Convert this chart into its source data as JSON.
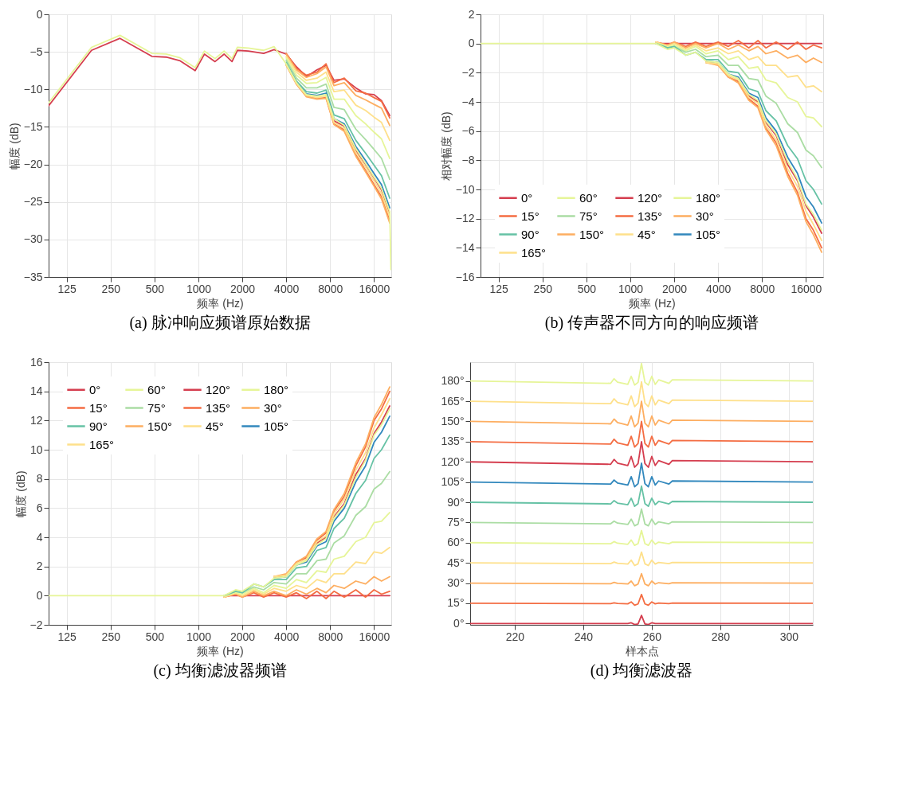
{
  "chart_data": [
    {
      "type": "line",
      "title": "(a) 脉冲响应频谱原始数据",
      "xlabel": "频率 (Hz)",
      "ylabel": "幅度 (dB)",
      "log": "x",
      "grid": true,
      "xlim": [
        94,
        21000
      ],
      "ylim": [
        -35,
        0
      ],
      "xticks": [
        125,
        250,
        500,
        1000,
        2000,
        4000,
        8000,
        16000
      ],
      "yticks": [
        -35,
        -30,
        -25,
        -20,
        -15,
        -10,
        -5,
        0
      ],
      "x": [
        94,
        185,
        290,
        480,
        600,
        750,
        950,
        1100,
        1300,
        1500,
        1700,
        1850,
        2200,
        2800,
        3300,
        4000,
        4700,
        5500,
        6500,
        7500,
        8500,
        10000,
        12000,
        14000,
        16000,
        18000,
        20500,
        20900
      ],
      "series": [
        {
          "color": "#d53e4f",
          "values": [
            -12.2,
            -4.8,
            -3.2,
            -5.6,
            -5.7,
            -6.2,
            -7.5,
            -5.3,
            -6.3,
            -5.3,
            -6.3,
            -4.8,
            -4.9,
            -5.2,
            -4.7,
            -5.3,
            -7,
            -8.3,
            -7.4,
            -6.8,
            -8.8,
            -8.6,
            -9.8,
            -10.6,
            -10.7,
            -11.5,
            -13.5,
            null
          ]
        },
        {
          "color": "#f46d43",
          "values": [
            null,
            null,
            null,
            null,
            null,
            null,
            null,
            null,
            null,
            null,
            null,
            null,
            null,
            null,
            null,
            -5.2,
            -7.2,
            -8.1,
            -7.7,
            -6.6,
            -9.1,
            -8.5,
            -10.2,
            -10.5,
            -11.1,
            -11.6,
            -13.8,
            null
          ]
        },
        {
          "color": "#fdae61",
          "values": [
            null,
            null,
            null,
            null,
            null,
            null,
            null,
            null,
            null,
            null,
            null,
            null,
            null,
            null,
            null,
            -5.3,
            -7.4,
            -8.4,
            -7.9,
            -7.0,
            -9.5,
            -9.1,
            -10.8,
            -11.4,
            -12.0,
            -12.5,
            -14.8,
            null
          ]
        },
        {
          "color": "#fee08b",
          "values": [
            null,
            null,
            null,
            null,
            null,
            null,
            null,
            null,
            null,
            null,
            null,
            null,
            null,
            null,
            null,
            -5.6,
            -7.7,
            -8.8,
            -8.5,
            -7.7,
            -10.3,
            -10.1,
            -12.1,
            -12.8,
            -13.7,
            -14.4,
            -16.8,
            null
          ]
        },
        {
          "color": "#e6f598",
          "values": [
            null,
            null,
            null,
            null,
            null,
            null,
            null,
            null,
            null,
            null,
            null,
            null,
            null,
            null,
            null,
            -5.8,
            -8.1,
            -9.2,
            -9.1,
            -8.4,
            -11.3,
            -11.3,
            -13.5,
            -14.6,
            -15.7,
            -16.6,
            -19.2,
            null
          ]
        },
        {
          "color": "#abdda4",
          "values": [
            null,
            null,
            null,
            null,
            null,
            null,
            null,
            null,
            null,
            null,
            null,
            null,
            null,
            null,
            null,
            -6.1,
            -8.5,
            -9.8,
            -9.8,
            -9.3,
            -12.4,
            -12.7,
            -15.3,
            -16.7,
            -18.0,
            -19.2,
            -22.0,
            null
          ]
        },
        {
          "color": "#66c2a5",
          "values": [
            null,
            null,
            null,
            null,
            null,
            null,
            null,
            null,
            null,
            null,
            null,
            null,
            null,
            null,
            null,
            -6.4,
            -8.9,
            -10.3,
            -10.5,
            -10.1,
            -13.4,
            -13.9,
            -16.8,
            -18.5,
            -20.1,
            -21.5,
            -24.5,
            null
          ]
        },
        {
          "color": "#3288bd",
          "values": [
            null,
            null,
            null,
            null,
            null,
            null,
            null,
            null,
            null,
            null,
            null,
            null,
            null,
            null,
            null,
            -6.6,
            -9.1,
            -10.6,
            -10.8,
            -10.5,
            -13.9,
            -14.6,
            -17.6,
            -19.5,
            -21.2,
            -22.7,
            -25.8,
            null
          ]
        },
        {
          "color": "#d53e4f",
          "values": [
            null,
            null,
            null,
            null,
            null,
            null,
            null,
            null,
            null,
            null,
            null,
            null,
            null,
            null,
            null,
            null,
            null,
            null,
            null,
            -10.8,
            -14.2,
            -14.9,
            -18.1,
            -20.0,
            -21.8,
            -23.4,
            -26.5,
            null
          ]
        },
        {
          "color": "#f46d43",
          "values": [
            null,
            null,
            null,
            null,
            null,
            null,
            null,
            null,
            null,
            null,
            null,
            null,
            null,
            null,
            null,
            -6.7,
            -9.3,
            -10.9,
            -11.2,
            -11.1,
            -14.6,
            -15.4,
            -18.7,
            -20.8,
            -22.7,
            -24.3,
            -27.5,
            null
          ]
        },
        {
          "color": "#fdae61",
          "values": [
            null,
            null,
            null,
            null,
            null,
            null,
            null,
            null,
            null,
            null,
            null,
            null,
            null,
            null,
            null,
            -6.8,
            -9.3,
            -11.0,
            -11.3,
            -11.2,
            -14.7,
            -15.6,
            -18.9,
            -21.0,
            -22.9,
            -24.6,
            -27.8,
            null
          ]
        },
        {
          "color": "#fee08b",
          "values": [
            null,
            null,
            null,
            null,
            null,
            null,
            null,
            null,
            null,
            null,
            null,
            null,
            null,
            null,
            null,
            -6.7,
            -9.2,
            -10.8,
            -11.1,
            -10.9,
            -14.4,
            -15.2,
            -18.4,
            -20.4,
            -22.2,
            -23.9,
            -27.0,
            null
          ]
        },
        {
          "color": "#e6f598",
          "values": [
            -11.8,
            -4.4,
            -2.8,
            -5.2,
            -5.3,
            -5.8,
            -7.1,
            -4.9,
            -5.9,
            -4.9,
            -5.9,
            -4.4,
            -4.5,
            -4.8,
            -4.3,
            -6.6,
            -9.1,
            -10.7,
            -10.9,
            -10.7,
            -13.9,
            -14.8,
            -17.9,
            -19.9,
            -21.7,
            -23.2,
            -26.3,
            -34
          ]
        }
      ]
    },
    {
      "type": "line",
      "title": "(b) 传声器不同方向的响应频谱",
      "xlabel": "频率 (Hz)",
      "ylabel": "相对幅度 (dB)",
      "log": "x",
      "grid": true,
      "legend": "bottom left",
      "xlim": [
        94,
        21000
      ],
      "ylim": [
        -16,
        2
      ],
      "xticks": [
        125,
        250,
        500,
        1000,
        2000,
        4000,
        8000,
        16000
      ],
      "yticks": [
        -16,
        -14,
        -12,
        -10,
        -8,
        -6,
        -4,
        -2,
        0,
        2
      ],
      "x": [
        94,
        500,
        1000,
        1200,
        1500,
        1800,
        2000,
        2400,
        2800,
        3300,
        4000,
        4700,
        5500,
        6500,
        7500,
        8500,
        10000,
        12000,
        14000,
        16000,
        18000,
        20500
      ],
      "series": [
        {
          "name": "0°",
          "color": "#d53e4f",
          "values": [
            null,
            null,
            null,
            null,
            0,
            0,
            0,
            0,
            0,
            0,
            0,
            0,
            0,
            0,
            0,
            0,
            0,
            0,
            0,
            0,
            0,
            0
          ]
        },
        {
          "name": "15°",
          "color": "#f46d43",
          "values": [
            null,
            null,
            null,
            null,
            0.1,
            -0.1,
            0.1,
            -0.2,
            0.1,
            -0.2,
            0.1,
            -0.2,
            0.2,
            -0.3,
            0.2,
            -0.3,
            0.1,
            -0.4,
            0.1,
            -0.4,
            -0.1,
            -0.3
          ]
        },
        {
          "name": "30°",
          "color": "#fdae61",
          "values": [
            null,
            null,
            null,
            null,
            0.1,
            -0.1,
            0.1,
            -0.3,
            0,
            -0.3,
            0,
            -0.4,
            -0.1,
            -0.5,
            -0.2,
            -0.7,
            -0.5,
            -1.0,
            -0.8,
            -1.3,
            -1.0,
            -1.3
          ]
        },
        {
          "name": "45°",
          "color": "#fee08b",
          "values": [
            null,
            null,
            null,
            null,
            0.1,
            -0.2,
            0,
            -0.4,
            -0.1,
            -0.5,
            -0.3,
            -0.7,
            -0.5,
            -1.1,
            -0.9,
            -1.5,
            -1.5,
            -2.3,
            -2.2,
            -3.0,
            -2.9,
            -3.3
          ]
        },
        {
          "name": "60°",
          "color": "#e6f598",
          "values": [
            null,
            null,
            null,
            null,
            0,
            -0.2,
            -0.1,
            -0.5,
            -0.2,
            -0.7,
            -0.5,
            -1.1,
            -0.9,
            -1.7,
            -1.6,
            -2.5,
            -2.7,
            -3.7,
            -4.0,
            -5.0,
            -5.1,
            -5.7
          ]
        },
        {
          "name": "75°",
          "color": "#abdda4",
          "values": [
            null,
            null,
            null,
            null,
            0,
            -0.3,
            -0.2,
            -0.6,
            -0.4,
            -0.9,
            -0.8,
            -1.5,
            -1.5,
            -2.4,
            -2.5,
            -3.6,
            -4.1,
            -5.5,
            -6.1,
            -7.3,
            -7.7,
            -8.5
          ]
        },
        {
          "name": "90°",
          "color": "#66c2a5",
          "values": [
            null,
            null,
            null,
            null,
            0,
            -0.3,
            -0.2,
            -0.8,
            -0.6,
            -1.1,
            -1.1,
            -1.9,
            -2.0,
            -3.1,
            -3.3,
            -4.6,
            -5.3,
            -7.0,
            -7.9,
            -9.4,
            -10.0,
            -11.0
          ]
        },
        {
          "name": "105°",
          "color": "#3288bd",
          "values": [
            null,
            null,
            null,
            null,
            null,
            null,
            null,
            null,
            null,
            -1.2,
            -1.3,
            -2.1,
            -2.3,
            -3.4,
            -3.7,
            -5.1,
            -6.0,
            -7.8,
            -8.9,
            -10.5,
            -11.2,
            -12.3
          ]
        },
        {
          "name": "120°",
          "color": "#d53e4f",
          "values": [
            null,
            null,
            null,
            null,
            null,
            null,
            null,
            null,
            null,
            null,
            null,
            null,
            -2.4,
            -3.6,
            -4.0,
            -5.4,
            -6.3,
            -8.3,
            -9.4,
            -11.1,
            -11.9,
            -13.0
          ]
        },
        {
          "name": "135°",
          "color": "#f46d43",
          "values": [
            null,
            null,
            null,
            null,
            null,
            null,
            null,
            null,
            null,
            -1.3,
            -1.4,
            -2.3,
            -2.6,
            -3.8,
            -4.3,
            -5.8,
            -6.8,
            -8.9,
            -10.2,
            -12.0,
            -12.8,
            -14.0
          ]
        },
        {
          "name": "150°",
          "color": "#fdae61",
          "values": [
            null,
            null,
            null,
            null,
            null,
            null,
            null,
            null,
            null,
            -1.3,
            -1.5,
            -2.3,
            -2.7,
            -3.9,
            -4.4,
            -5.9,
            -7.0,
            -9.1,
            -10.4,
            -12.2,
            -13.1,
            -14.3
          ]
        },
        {
          "name": "165°",
          "color": "#fee08b",
          "values": [
            null,
            null,
            null,
            null,
            null,
            null,
            null,
            null,
            null,
            -1.3,
            -1.4,
            -2.2,
            -2.5,
            -3.7,
            -4.1,
            -5.6,
            -6.6,
            -8.6,
            -9.8,
            -11.5,
            -12.4,
            -13.5
          ]
        },
        {
          "name": "180°",
          "color": "#e6f598",
          "values": [
            0,
            0,
            0,
            0,
            0,
            -0.4,
            -0.3,
            -0.8,
            -0.6,
            -1.2,
            -1.3,
            -2.1,
            -2.4,
            -3.5,
            -3.9,
            -5.3,
            -6.2,
            -8.1,
            -9.3,
            -11.0,
            -11.7,
            -12.8
          ]
        }
      ]
    },
    {
      "type": "line",
      "title": "(c) 均衡滤波器频谱",
      "xlabel": "频率 (Hz)",
      "ylabel": "幅度 (dB)",
      "log": "x",
      "grid": true,
      "legend": "top left",
      "xlim": [
        94,
        21000
      ],
      "ylim": [
        -2,
        16
      ],
      "xticks": [
        125,
        250,
        500,
        1000,
        2000,
        4000,
        8000,
        16000
      ],
      "yticks": [
        -2,
        0,
        2,
        4,
        6,
        8,
        10,
        12,
        14,
        16
      ],
      "x": [
        94,
        500,
        1000,
        1200,
        1500,
        1800,
        2000,
        2400,
        2800,
        3300,
        4000,
        4700,
        5500,
        6500,
        7500,
        8500,
        10000,
        12000,
        14000,
        16000,
        18000,
        20500
      ],
      "series": [
        {
          "name": "0°",
          "color": "#d53e4f",
          "values": [
            null,
            null,
            null,
            null,
            0,
            0,
            0,
            0,
            0,
            0,
            0,
            0,
            0,
            0,
            0,
            0,
            0,
            0,
            0,
            0,
            0,
            0
          ]
        },
        {
          "name": "15°",
          "color": "#f46d43",
          "values": [
            null,
            null,
            null,
            null,
            -0.1,
            0.1,
            -0.1,
            0.2,
            -0.1,
            0.2,
            -0.1,
            0.2,
            -0.2,
            0.3,
            -0.2,
            0.3,
            -0.1,
            0.4,
            -0.1,
            0.4,
            0.1,
            0.3
          ]
        },
        {
          "name": "30°",
          "color": "#fdae61",
          "values": [
            null,
            null,
            null,
            null,
            -0.1,
            0.1,
            -0.1,
            0.3,
            0,
            0.3,
            0,
            0.4,
            0.1,
            0.5,
            0.2,
            0.7,
            0.5,
            1.0,
            0.8,
            1.3,
            1.0,
            1.3
          ]
        },
        {
          "name": "45°",
          "color": "#fee08b",
          "values": [
            null,
            null,
            null,
            null,
            -0.1,
            0.2,
            0,
            0.4,
            0.1,
            0.5,
            0.3,
            0.7,
            0.5,
            1.1,
            0.9,
            1.5,
            1.5,
            2.3,
            2.2,
            3.0,
            2.9,
            3.3
          ]
        },
        {
          "name": "60°",
          "color": "#e6f598",
          "values": [
            null,
            null,
            null,
            null,
            0,
            0.2,
            0.1,
            0.5,
            0.2,
            0.7,
            0.5,
            1.1,
            0.9,
            1.7,
            1.6,
            2.5,
            2.7,
            3.7,
            4.0,
            5.0,
            5.1,
            5.7
          ]
        },
        {
          "name": "75°",
          "color": "#abdda4",
          "values": [
            null,
            null,
            null,
            null,
            0,
            0.3,
            0.2,
            0.6,
            0.4,
            0.9,
            0.8,
            1.5,
            1.5,
            2.4,
            2.5,
            3.6,
            4.1,
            5.5,
            6.1,
            7.3,
            7.7,
            8.5
          ]
        },
        {
          "name": "90°",
          "color": "#66c2a5",
          "values": [
            null,
            null,
            null,
            null,
            0,
            0.3,
            0.2,
            0.8,
            0.6,
            1.1,
            1.1,
            1.9,
            2.0,
            3.1,
            3.3,
            4.6,
            5.3,
            7.0,
            7.9,
            9.4,
            10.0,
            11.0
          ]
        },
        {
          "name": "105°",
          "color": "#3288bd",
          "values": [
            null,
            null,
            null,
            null,
            null,
            null,
            null,
            null,
            null,
            1.2,
            1.3,
            2.1,
            2.3,
            3.4,
            3.7,
            5.1,
            6.0,
            7.8,
            8.9,
            10.5,
            11.2,
            12.3
          ]
        },
        {
          "name": "120°",
          "color": "#d53e4f",
          "values": [
            null,
            null,
            null,
            null,
            null,
            null,
            null,
            null,
            null,
            null,
            null,
            null,
            2.4,
            3.6,
            4.0,
            5.4,
            6.3,
            8.3,
            9.4,
            11.1,
            11.9,
            13.0
          ]
        },
        {
          "name": "135°",
          "color": "#f46d43",
          "values": [
            null,
            null,
            null,
            null,
            null,
            null,
            null,
            null,
            null,
            1.3,
            1.4,
            2.3,
            2.6,
            3.8,
            4.3,
            5.8,
            6.8,
            8.9,
            10.2,
            12.0,
            12.8,
            14.0
          ]
        },
        {
          "name": "150°",
          "color": "#fdae61",
          "values": [
            null,
            null,
            null,
            null,
            null,
            null,
            null,
            null,
            null,
            1.3,
            1.5,
            2.3,
            2.7,
            3.9,
            4.4,
            5.9,
            7.0,
            9.1,
            10.4,
            12.2,
            13.1,
            14.3
          ]
        },
        {
          "name": "165°",
          "color": "#fee08b",
          "values": [
            null,
            null,
            null,
            null,
            null,
            null,
            null,
            null,
            null,
            1.3,
            1.4,
            2.2,
            2.5,
            3.7,
            4.1,
            5.6,
            6.6,
            8.6,
            9.8,
            11.5,
            12.4,
            13.5
          ]
        },
        {
          "name": "180°",
          "color": "#e6f598",
          "values": [
            0,
            0,
            0,
            0,
            0,
            0.4,
            0.3,
            0.8,
            0.6,
            1.2,
            1.3,
            2.1,
            2.4,
            3.5,
            3.9,
            5.3,
            6.2,
            8.1,
            9.3,
            11.0,
            11.7,
            12.8
          ]
        }
      ]
    },
    {
      "type": "line",
      "title": "(d) 均衡滤波器",
      "xlabel": "样本点",
      "grid": "x",
      "xlim": [
        207,
        307
      ],
      "ylim": [
        -1,
        194
      ],
      "xticks": [
        220,
        240,
        260,
        280,
        300
      ],
      "yticks": [
        {
          "value": 0,
          "label": "0°"
        },
        {
          "value": 15,
          "label": "15°"
        },
        {
          "value": 30,
          "label": "30°"
        },
        {
          "value": 45,
          "label": "45°"
        },
        {
          "value": 60,
          "label": "60°"
        },
        {
          "value": 75,
          "label": "75°"
        },
        {
          "value": 90,
          "label": "90°"
        },
        {
          "value": 105,
          "label": "105°"
        },
        {
          "value": 120,
          "label": "120°"
        },
        {
          "value": 135,
          "label": "135°"
        },
        {
          "value": 150,
          "label": "150°"
        },
        {
          "value": 165,
          "label": "165°"
        },
        {
          "value": 180,
          "label": "180°"
        }
      ],
      "x": [
        207,
        248,
        249,
        250,
        253,
        254,
        255,
        256,
        257,
        258,
        259,
        260,
        261,
        262,
        265,
        266,
        307
      ],
      "series": [
        {
          "color": "#d53e4f",
          "values": [
            0,
            0,
            0,
            0,
            0,
            0.5,
            -0.8,
            -0.3,
            6,
            -0.3,
            -0.8,
            0.5,
            0,
            0,
            0,
            0,
            0
          ]
        },
        {
          "color": "#f46d43",
          "values": [
            15,
            14.7,
            15.3,
            14.9,
            14.6,
            16,
            13.5,
            14.5,
            21.5,
            14.5,
            13.5,
            16,
            14.6,
            15.2,
            14.7,
            15.2,
            15
          ]
        },
        {
          "color": "#fdae61",
          "values": [
            30,
            29.5,
            30.5,
            29.8,
            29.3,
            31.5,
            28,
            29.3,
            37,
            29.3,
            28,
            31.5,
            29.3,
            30.3,
            29.5,
            30.3,
            30
          ]
        },
        {
          "color": "#fee08b",
          "values": [
            45,
            44.4,
            45.6,
            44.7,
            44.1,
            47,
            43,
            44.3,
            53,
            44.3,
            43,
            47,
            44.1,
            45.3,
            44.4,
            45.3,
            45
          ]
        },
        {
          "color": "#e6f598",
          "values": [
            60,
            59.2,
            60.8,
            59.6,
            58.8,
            62,
            58,
            59.3,
            69,
            59.3,
            58,
            62,
            58.8,
            60.4,
            59.2,
            60.4,
            60
          ]
        },
        {
          "color": "#abdda4",
          "values": [
            75,
            74,
            76,
            74.5,
            73.5,
            77.5,
            72.5,
            73.8,
            85,
            73.8,
            72.5,
            77.5,
            73.5,
            75.5,
            74,
            75.5,
            75
          ]
        },
        {
          "color": "#66c2a5",
          "values": [
            90,
            88.8,
            91.2,
            89.4,
            88.2,
            93,
            87,
            89,
            102,
            89,
            87,
            93,
            88.2,
            90.6,
            88.8,
            90.6,
            90
          ]
        },
        {
          "color": "#3288bd",
          "values": [
            105,
            103.5,
            106.5,
            104.3,
            102.8,
            109,
            101.5,
            103.8,
            119,
            103.8,
            101.5,
            109,
            102.8,
            105.8,
            103.5,
            105.8,
            105
          ]
        },
        {
          "color": "#d53e4f",
          "values": [
            120,
            118.2,
            121.8,
            119.1,
            117.3,
            124,
            116,
            118.7,
            135,
            118.7,
            116,
            124,
            117.3,
            120.9,
            118.2,
            120.9,
            120
          ]
        },
        {
          "color": "#f46d43",
          "values": [
            135,
            133.2,
            136.8,
            134.1,
            132.3,
            139,
            131,
            133.7,
            150,
            133.7,
            131,
            139,
            132.3,
            135.9,
            133.2,
            135.9,
            135
          ]
        },
        {
          "color": "#fdae61",
          "values": [
            150,
            148.2,
            151.8,
            149.1,
            147.3,
            154,
            146,
            148.7,
            165,
            148.7,
            146,
            154,
            147.3,
            150.9,
            148.2,
            150.9,
            150
          ]
        },
        {
          "color": "#fee08b",
          "values": [
            165,
            163.2,
            166.8,
            164.1,
            162.3,
            169,
            161,
            163.7,
            179.5,
            163.7,
            161,
            169,
            162.3,
            165.9,
            163.2,
            165.9,
            165
          ]
        },
        {
          "color": "#e6f598",
          "values": [
            180,
            178.3,
            181.7,
            179.2,
            177.5,
            183.5,
            177,
            179,
            193,
            179,
            177,
            183.5,
            177.5,
            180.9,
            178.3,
            180.9,
            180
          ]
        }
      ]
    }
  ]
}
